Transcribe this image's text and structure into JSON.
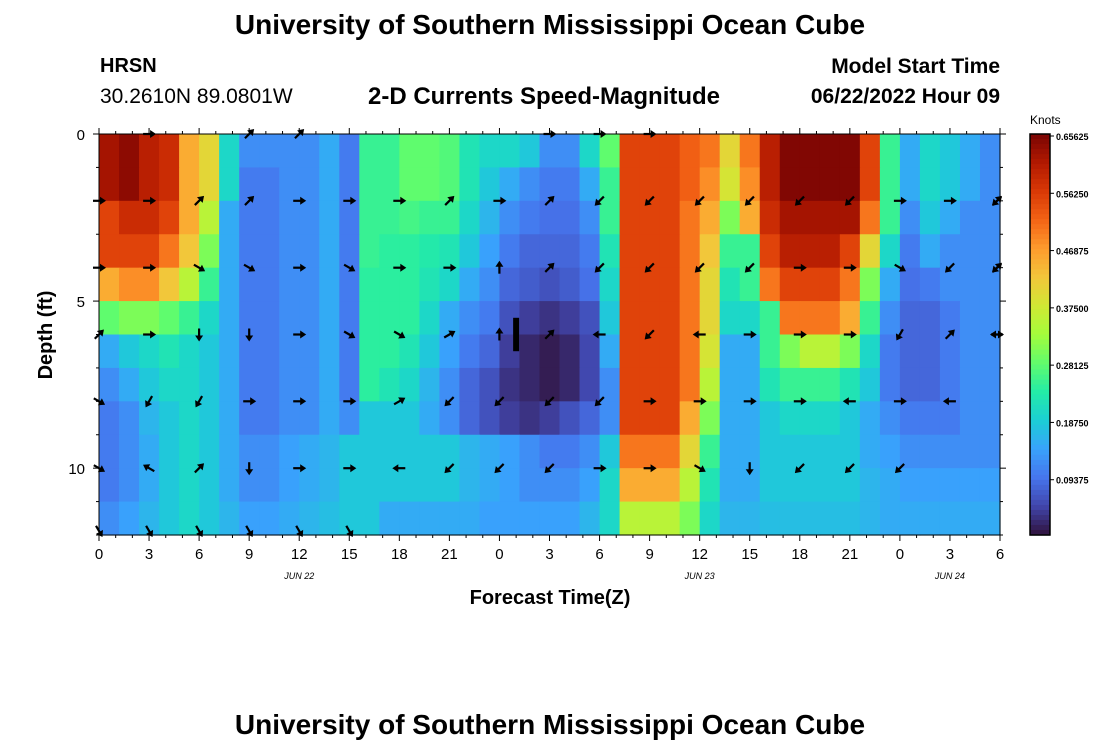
{
  "header": {
    "title": "University of Southern Mississippi Ocean Cube",
    "station": "HRSN",
    "coordinates": "30.2610N  89.0801W",
    "subtitle": "2-D Currents Speed-Magnitude",
    "model_start_label": "Model Start Time",
    "model_start_value": "06/22/2022 Hour 09"
  },
  "footer": {
    "title": "University of Southern Mississippi Ocean Cube"
  },
  "chart_data": {
    "type": "heatmap",
    "title": "2-D Currents Speed-Magnitude",
    "xlabel": "Forecast Time(Z)",
    "ylabel": "Depth (ft)",
    "x_ticks": [
      "0",
      "3",
      "6",
      "9",
      "12",
      "15",
      "18",
      "21",
      "0",
      "3",
      "6",
      "9",
      "12",
      "15",
      "18",
      "21",
      "0",
      "3",
      "6"
    ],
    "date_labels": [
      {
        "label": "JUN 22",
        "at_hour": 12
      },
      {
        "label": "JUN 23",
        "at_hour": 36
      },
      {
        "label": "JUN 24",
        "at_hour": 51
      }
    ],
    "x_range_hours": [
      0,
      54
    ],
    "y_ticks": [
      "0",
      "5",
      "10"
    ],
    "y_range": [
      0,
      12
    ],
    "colorbar": {
      "unit": "Knots",
      "range": [
        0,
        0.65625
      ],
      "tick_values": [
        0.09375,
        0.1875,
        0.28125,
        0.375,
        0.46875,
        0.5625,
        0.65625
      ],
      "tick_labels": [
        "0.09375",
        "0.18750",
        "0.28125",
        "0.37500",
        "0.46875",
        "0.56250",
        "0.65625"
      ],
      "colors": [
        "#30123b",
        "#4145ab",
        "#4675ed",
        "#39a2fc",
        "#1bcfd4",
        "#24eca6",
        "#61fc6c",
        "#a4fc3b",
        "#d1e834",
        "#f3c63a",
        "#fe9b2d",
        "#f36315",
        "#d93806",
        "#b11901",
        "#7a0403"
      ]
    },
    "heat_rows": [
      {
        "depth": 0,
        "values": [
          0.62,
          0.64,
          0.6,
          0.58,
          0.45,
          0.4,
          0.2,
          0.12,
          0.12,
          0.12,
          0.12,
          0.15,
          0.1,
          0.25,
          0.25,
          0.28,
          0.28,
          0.27,
          0.22,
          0.2,
          0.2,
          0.18,
          0.12,
          0.12,
          0.2,
          0.28,
          0.55,
          0.55,
          0.55,
          0.52,
          0.5,
          0.4,
          0.5,
          0.6,
          0.65,
          0.65,
          0.65,
          0.65,
          0.55,
          0.25,
          0.15,
          0.2,
          0.18,
          0.15,
          0.12
        ]
      },
      {
        "depth": 1,
        "values": [
          0.62,
          0.64,
          0.6,
          0.58,
          0.45,
          0.4,
          0.2,
          0.1,
          0.1,
          0.12,
          0.12,
          0.15,
          0.1,
          0.25,
          0.25,
          0.28,
          0.28,
          0.27,
          0.22,
          0.18,
          0.15,
          0.12,
          0.1,
          0.1,
          0.15,
          0.25,
          0.55,
          0.55,
          0.55,
          0.52,
          0.48,
          0.38,
          0.48,
          0.6,
          0.65,
          0.65,
          0.65,
          0.65,
          0.55,
          0.25,
          0.15,
          0.2,
          0.18,
          0.15,
          0.12
        ]
      },
      {
        "depth": 2,
        "values": [
          0.55,
          0.58,
          0.58,
          0.55,
          0.45,
          0.35,
          0.15,
          0.1,
          0.1,
          0.12,
          0.12,
          0.15,
          0.1,
          0.25,
          0.25,
          0.26,
          0.25,
          0.25,
          0.2,
          0.16,
          0.12,
          0.1,
          0.09,
          0.09,
          0.12,
          0.25,
          0.55,
          0.55,
          0.55,
          0.5,
          0.45,
          0.3,
          0.45,
          0.58,
          0.62,
          0.62,
          0.62,
          0.62,
          0.5,
          0.25,
          0.12,
          0.18,
          0.15,
          0.12,
          0.12
        ]
      },
      {
        "depth": 3,
        "values": [
          0.55,
          0.55,
          0.55,
          0.5,
          0.42,
          0.3,
          0.15,
          0.1,
          0.1,
          0.12,
          0.12,
          0.15,
          0.1,
          0.25,
          0.24,
          0.24,
          0.23,
          0.22,
          0.18,
          0.14,
          0.1,
          0.08,
          0.08,
          0.08,
          0.1,
          0.22,
          0.55,
          0.55,
          0.55,
          0.5,
          0.42,
          0.25,
          0.25,
          0.55,
          0.6,
          0.6,
          0.6,
          0.55,
          0.4,
          0.2,
          0.1,
          0.15,
          0.12,
          0.12,
          0.12
        ]
      },
      {
        "depth": 4,
        "values": [
          0.45,
          0.48,
          0.48,
          0.42,
          0.35,
          0.25,
          0.15,
          0.1,
          0.1,
          0.12,
          0.12,
          0.15,
          0.1,
          0.24,
          0.24,
          0.24,
          0.22,
          0.2,
          0.15,
          0.12,
          0.08,
          0.07,
          0.06,
          0.07,
          0.09,
          0.2,
          0.55,
          0.55,
          0.55,
          0.5,
          0.4,
          0.22,
          0.25,
          0.5,
          0.55,
          0.55,
          0.55,
          0.5,
          0.3,
          0.15,
          0.09,
          0.1,
          0.12,
          0.12,
          0.12
        ]
      },
      {
        "depth": 5,
        "values": [
          0.28,
          0.3,
          0.3,
          0.28,
          0.25,
          0.2,
          0.15,
          0.1,
          0.1,
          0.12,
          0.12,
          0.15,
          0.1,
          0.24,
          0.24,
          0.24,
          0.2,
          0.15,
          0.12,
          0.1,
          0.06,
          0.04,
          0.03,
          0.04,
          0.06,
          0.18,
          0.55,
          0.55,
          0.55,
          0.5,
          0.4,
          0.2,
          0.2,
          0.25,
          0.5,
          0.5,
          0.5,
          0.45,
          0.25,
          0.12,
          0.08,
          0.08,
          0.1,
          0.12,
          0.12
        ]
      },
      {
        "depth": 6,
        "values": [
          0.15,
          0.18,
          0.2,
          0.22,
          0.2,
          0.18,
          0.15,
          0.1,
          0.1,
          0.12,
          0.12,
          0.15,
          0.1,
          0.24,
          0.24,
          0.22,
          0.18,
          0.14,
          0.1,
          0.08,
          0.04,
          0.02,
          0.01,
          0.02,
          0.05,
          0.15,
          0.55,
          0.55,
          0.55,
          0.5,
          0.38,
          0.15,
          0.15,
          0.25,
          0.3,
          0.35,
          0.35,
          0.3,
          0.2,
          0.1,
          0.08,
          0.08,
          0.1,
          0.12,
          0.12
        ]
      },
      {
        "depth": 7,
        "values": [
          0.12,
          0.15,
          0.18,
          0.2,
          0.2,
          0.18,
          0.15,
          0.1,
          0.1,
          0.12,
          0.12,
          0.15,
          0.1,
          0.24,
          0.22,
          0.2,
          0.16,
          0.12,
          0.08,
          0.06,
          0.03,
          0.02,
          0.01,
          0.02,
          0.05,
          0.12,
          0.55,
          0.55,
          0.55,
          0.5,
          0.35,
          0.15,
          0.15,
          0.22,
          0.25,
          0.25,
          0.25,
          0.22,
          0.18,
          0.1,
          0.08,
          0.08,
          0.1,
          0.12,
          0.12
        ]
      },
      {
        "depth": 8,
        "values": [
          0.1,
          0.12,
          0.16,
          0.18,
          0.2,
          0.18,
          0.15,
          0.1,
          0.1,
          0.12,
          0.12,
          0.15,
          0.12,
          0.18,
          0.18,
          0.18,
          0.15,
          0.12,
          0.08,
          0.06,
          0.04,
          0.03,
          0.04,
          0.06,
          0.08,
          0.12,
          0.55,
          0.55,
          0.55,
          0.45,
          0.3,
          0.15,
          0.15,
          0.18,
          0.2,
          0.2,
          0.2,
          0.18,
          0.15,
          0.12,
          0.1,
          0.1,
          0.1,
          0.12,
          0.12
        ]
      },
      {
        "depth": 9,
        "values": [
          0.1,
          0.12,
          0.15,
          0.18,
          0.2,
          0.18,
          0.15,
          0.12,
          0.12,
          0.14,
          0.15,
          0.16,
          0.18,
          0.18,
          0.18,
          0.18,
          0.18,
          0.18,
          0.16,
          0.15,
          0.14,
          0.12,
          0.1,
          0.1,
          0.12,
          0.18,
          0.5,
          0.5,
          0.5,
          0.4,
          0.25,
          0.15,
          0.15,
          0.18,
          0.18,
          0.18,
          0.18,
          0.18,
          0.15,
          0.14,
          0.12,
          0.12,
          0.12,
          0.12,
          0.12
        ]
      },
      {
        "depth": 10,
        "values": [
          0.1,
          0.12,
          0.15,
          0.18,
          0.2,
          0.18,
          0.15,
          0.12,
          0.12,
          0.14,
          0.15,
          0.16,
          0.18,
          0.18,
          0.18,
          0.18,
          0.18,
          0.18,
          0.16,
          0.15,
          0.14,
          0.12,
          0.12,
          0.12,
          0.14,
          0.2,
          0.45,
          0.45,
          0.45,
          0.35,
          0.22,
          0.15,
          0.15,
          0.18,
          0.18,
          0.18,
          0.18,
          0.18,
          0.16,
          0.15,
          0.14,
          0.14,
          0.14,
          0.14,
          0.14
        ]
      },
      {
        "depth": 11,
        "values": [
          0.12,
          0.14,
          0.16,
          0.18,
          0.2,
          0.18,
          0.16,
          0.14,
          0.14,
          0.15,
          0.16,
          0.17,
          0.18,
          0.18,
          0.15,
          0.15,
          0.15,
          0.15,
          0.15,
          0.14,
          0.14,
          0.14,
          0.14,
          0.14,
          0.16,
          0.2,
          0.35,
          0.35,
          0.35,
          0.3,
          0.2,
          0.16,
          0.16,
          0.17,
          0.17,
          0.17,
          0.17,
          0.17,
          0.16,
          0.15,
          0.15,
          0.15,
          0.15,
          0.15,
          0.15
        ]
      }
    ],
    "vector_rows": [
      {
        "depth": 0,
        "angles": [
          null,
          0,
          null,
          45,
          45,
          null,
          null,
          null,
          null,
          0,
          0,
          0,
          null,
          null,
          null,
          null,
          null,
          null
        ]
      },
      {
        "depth": 2,
        "angles": [
          0,
          0,
          45,
          45,
          0,
          0,
          0,
          45,
          0,
          45,
          -135,
          -135,
          -135,
          -135,
          -135,
          -135,
          0,
          0,
          45,
          -135
        ]
      },
      {
        "depth": 4,
        "angles": [
          0,
          0,
          -30,
          -30,
          0,
          -30,
          0,
          0,
          90,
          45,
          -135,
          -135,
          -135,
          -135,
          0,
          0,
          -30,
          -135,
          45,
          -135
        ]
      },
      {
        "depth": 6,
        "angles": [
          45,
          0,
          -90,
          -90,
          0,
          -30,
          -30,
          30,
          90,
          45,
          180,
          -135,
          180,
          0,
          0,
          0,
          -120,
          45,
          0,
          180
        ]
      },
      {
        "depth": 8,
        "angles": [
          -30,
          -120,
          -120,
          0,
          0,
          0,
          30,
          -135,
          -135,
          -135,
          -135,
          0,
          0,
          0,
          0,
          180,
          0,
          180
        ]
      },
      {
        "depth": 10,
        "angles": [
          -30,
          150,
          45,
          -90,
          0,
          0,
          180,
          -135,
          -135,
          -135,
          0,
          0,
          -30,
          -90,
          -135,
          -135,
          -135
        ]
      },
      {
        "depth": 12,
        "angles": [
          -60,
          -60,
          -60,
          -60,
          -60,
          -60
        ]
      }
    ]
  }
}
